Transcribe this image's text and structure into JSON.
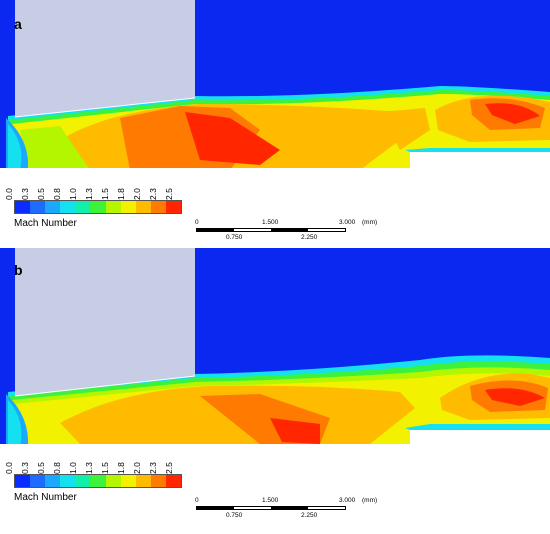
{
  "panels": [
    {
      "label": "a"
    },
    {
      "label": "b"
    }
  ],
  "legend": {
    "title": "Mach Number",
    "ticks": [
      "0.0",
      "0.3",
      "0.5",
      "0.8",
      "1.0",
      "1.3",
      "1.5",
      "1.8",
      "2.0",
      "2.3",
      "2.5"
    ],
    "colors": [
      "#0b2cff",
      "#1d6bff",
      "#1aa9ff",
      "#15e0f0",
      "#11f0a8",
      "#3df23d",
      "#b4f500",
      "#f2f200",
      "#ffbb00",
      "#ff7a00",
      "#ff2600"
    ]
  },
  "scale_bar": {
    "top_labels": [
      "0",
      "1.500",
      "3.000",
      "(mm)"
    ],
    "bottom_labels": [
      "0.750",
      "2.250"
    ]
  },
  "colors": {
    "background_flow": "#0a28f0",
    "solid_body": "#c8cde6"
  }
}
